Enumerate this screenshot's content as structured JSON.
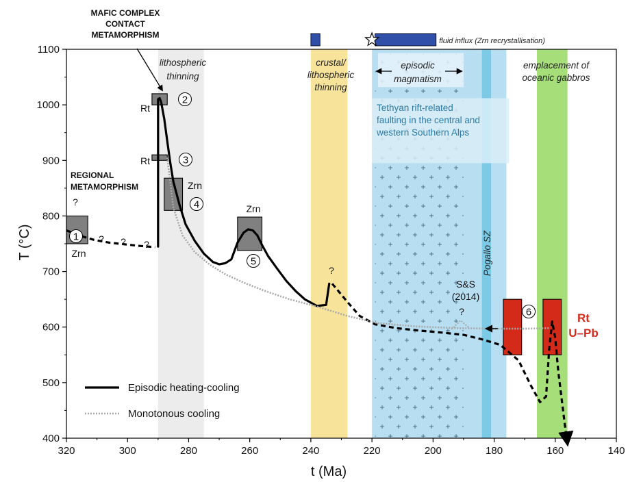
{
  "chart_data": {
    "type": "line",
    "xlabel": "t (Ma)",
    "ylabel": "T (°C)",
    "xlim": [
      320,
      140
    ],
    "ylim": [
      400,
      1100
    ],
    "x_ticks": [
      320,
      300,
      280,
      260,
      240,
      220,
      200,
      180,
      160,
      140
    ],
    "y_ticks": [
      400,
      500,
      600,
      700,
      800,
      900,
      1000,
      1100
    ],
    "x_reversed": true,
    "bands": [
      {
        "name": "lithospheric thinning",
        "label_lines": [
          "lithospheric",
          "thinning"
        ],
        "x": [
          290,
          275
        ],
        "color": "#ececec"
      },
      {
        "name": "crustal/lithospheric thinning",
        "label_lines": [
          "crustal/",
          "lithospheric",
          "thinning"
        ],
        "x": [
          240,
          228
        ],
        "color": "#f7e49a"
      },
      {
        "name": "Tethyan rift-related faulting",
        "label_lines": [
          "Tethyan rift-related",
          "faulting in the central and",
          "western Southern Alps"
        ],
        "x": [
          220,
          176
        ],
        "color": "#b8def2"
      },
      {
        "name": "Pogallo SZ",
        "label": "Pogallo SZ",
        "x": [
          184,
          181
        ],
        "color": "#7ccae6"
      },
      {
        "name": "emplacement of oceanic gabbros",
        "label_lines": [
          "emplacement of",
          "oceanic gabbros"
        ],
        "x": [
          166,
          156
        ],
        "color": "#a6df7a"
      }
    ],
    "fluid_influx": {
      "label": "fluid influx (Zrn recrystallisation)",
      "bars": [
        [
          240,
          237
        ],
        [
          219,
          199
        ]
      ],
      "star_x": 220,
      "color": "#2f4fa8"
    },
    "titles": {
      "mafic": [
        "MAFIC COMPLEX",
        "CONTACT",
        "METAMORPHISM"
      ],
      "regional": [
        "REGIONAL",
        "METAMORPHISM"
      ],
      "episodic_magmatism": [
        "episodic",
        "magmatism"
      ],
      "rt_upb": [
        "Rt",
        "U–Pb"
      ],
      "ss2014": [
        "S&S",
        "(2014)"
      ]
    },
    "data_boxes": [
      {
        "id": "1",
        "mineral": "Zrn",
        "x": [
          320,
          313
        ],
        "y": [
          750,
          800
        ],
        "color": "#808080"
      },
      {
        "id": "2",
        "mineral": "Rt",
        "x": [
          292,
          287
        ],
        "y": [
          1000,
          1020
        ],
        "color": "#808080"
      },
      {
        "id": "3",
        "mineral": "Rt",
        "x": [
          292,
          287
        ],
        "y": [
          900,
          910
        ],
        "color": "#808080"
      },
      {
        "id": "4",
        "mineral": "Zrn",
        "x": [
          288,
          282
        ],
        "y": [
          810,
          868
        ],
        "color": "#808080"
      },
      {
        "id": "5",
        "mineral": "Zrn",
        "x": [
          264,
          256
        ],
        "y": [
          738,
          798
        ],
        "color": "#808080"
      },
      {
        "id": "6",
        "mineral": "",
        "x": [
          177,
          171
        ],
        "y": [
          550,
          650
        ],
        "color": "#d42a1a"
      },
      {
        "id": "",
        "mineral": "",
        "x": [
          164,
          158
        ],
        "y": [
          550,
          650
        ],
        "color": "#d42a1a"
      }
    ],
    "series": [
      {
        "name": "Episodic heating-cooling",
        "style": "solid",
        "color": "#000000",
        "x": [
          290,
          290,
          289.5,
          289,
          288,
          287,
          286,
          285,
          283,
          281,
          278,
          275,
          272,
          270,
          268,
          266,
          264,
          262,
          260.5,
          259,
          257.5,
          256,
          254,
          251,
          248,
          245,
          242,
          238,
          235,
          234
        ],
        "y": [
          745,
          1010,
          1012,
          1005,
          975,
          935,
          895,
          862,
          820,
          785,
          755,
          732,
          717,
          713,
          715,
          722,
          752,
          770,
          776,
          774,
          765,
          748,
          728,
          705,
          683,
          665,
          650,
          638,
          640,
          678
        ]
      },
      {
        "name": "dashed path",
        "style": "dashed",
        "color": "#000000",
        "x": [
          320,
          316,
          311,
          306,
          301,
          296,
          291
        ],
        "y": [
          774,
          765,
          757,
          752,
          749,
          746,
          744
        ]
      },
      {
        "name": "dashed descending",
        "style": "dashed",
        "color": "#000000",
        "x": [
          233,
          231,
          228,
          224,
          219,
          212,
          205,
          197,
          190,
          184,
          178,
          172,
          168,
          165,
          163,
          162,
          161,
          160,
          159,
          158,
          157,
          156
        ],
        "y": [
          678,
          665,
          645,
          620,
          605,
          598,
          594,
          590,
          586,
          578,
          568,
          540,
          495,
          465,
          475,
          560,
          610,
          580,
          520,
          475,
          430,
          390
        ]
      },
      {
        "name": "Monotonous cooling",
        "style": "dotted",
        "color": "#a8a8a8",
        "x": [
          287,
          285,
          282,
          278,
          273,
          268,
          262,
          255,
          247,
          238,
          228,
          218,
          205,
          192,
          180,
          170,
          162
        ],
        "y": [
          905,
          815,
          765,
          735,
          712,
          695,
          680,
          665,
          650,
          637,
          620,
          607,
          601,
          598,
          597,
          597,
          598
        ]
      }
    ],
    "legend": {
      "placement": "bottom-left",
      "entries": [
        "Episodic heating-cooling",
        "Monotonous cooling"
      ]
    }
  }
}
